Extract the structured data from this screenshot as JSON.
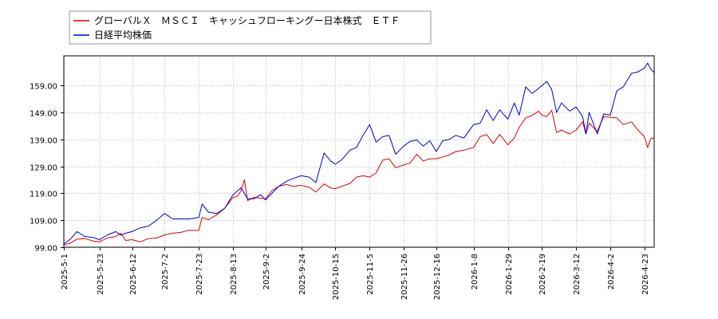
{
  "chart_data": {
    "type": "line",
    "title": "",
    "xlabel": "",
    "ylabel": "",
    "x_tick_labels": [
      "2025-5-1",
      "2025-5-23",
      "2025-6-12",
      "2025-7-2",
      "2025-7-23",
      "2025-8-13",
      "2025-9-2",
      "2025-9-24",
      "2025-10-15",
      "2025-11-5",
      "2025-11-26",
      "2025-12-16",
      "2026-1-8",
      "2026-1-29",
      "2026-2-19",
      "2026-3-12",
      "2026-4-2",
      "2026-4-23"
    ],
    "y_tick_labels": [
      "99.00",
      "109.00",
      "119.00",
      "129.00",
      "139.00",
      "149.00",
      "159.00"
    ],
    "ylim": [
      99,
      170
    ],
    "grid": true,
    "legend_position": "top-left",
    "series": [
      {
        "name": "グローバルＸ　ＭＳＣＩ　キャッシュフローキングー日本株式　ＥＴＦ",
        "color": "#dd0000",
        "points": [
          [
            "2025-5-1",
            99.9
          ],
          [
            "2025-5-5",
            100.5
          ],
          [
            "2025-5-9",
            102.0
          ],
          [
            "2025-5-14",
            102.2
          ],
          [
            "2025-5-19",
            101.3
          ],
          [
            "2025-5-23",
            101.0
          ],
          [
            "2025-5-28",
            102.5
          ],
          [
            "2025-6-2",
            103.0
          ],
          [
            "2025-6-5",
            104.2
          ],
          [
            "2025-6-8",
            101.5
          ],
          [
            "2025-6-12",
            101.8
          ],
          [
            "2025-6-17",
            101.0
          ],
          [
            "2025-6-22",
            102.2
          ],
          [
            "2025-6-27",
            102.4
          ],
          [
            "2025-7-2",
            103.6
          ],
          [
            "2025-7-7",
            104.2
          ],
          [
            "2025-7-12",
            104.5
          ],
          [
            "2025-7-17",
            105.3
          ],
          [
            "2025-7-23",
            105.2
          ],
          [
            "2025-7-25",
            110.0
          ],
          [
            "2025-7-29",
            109.2
          ],
          [
            "2025-8-3",
            111.0
          ],
          [
            "2025-8-8",
            113.5
          ],
          [
            "2025-8-13",
            117.5
          ],
          [
            "2025-8-16",
            118.0
          ],
          [
            "2025-8-18",
            120.0
          ],
          [
            "2025-8-20",
            124.0
          ],
          [
            "2025-8-22",
            116.3
          ],
          [
            "2025-8-26",
            117.5
          ],
          [
            "2025-8-30",
            117.2
          ],
          [
            "2025-9-2",
            117.0
          ],
          [
            "2025-9-6",
            120.0
          ],
          [
            "2025-9-10",
            121.5
          ],
          [
            "2025-9-15",
            122.3
          ],
          [
            "2025-9-19",
            121.5
          ],
          [
            "2025-9-24",
            122.0
          ],
          [
            "2025-9-29",
            121.2
          ],
          [
            "2025-10-3",
            119.5
          ],
          [
            "2025-10-8",
            122.5
          ],
          [
            "2025-10-12",
            121.0
          ],
          [
            "2025-10-15",
            120.7
          ],
          [
            "2025-10-19",
            121.6
          ],
          [
            "2025-10-24",
            122.7
          ],
          [
            "2025-10-28",
            125.0
          ],
          [
            "2025-11-1",
            125.5
          ],
          [
            "2025-11-5",
            125.0
          ],
          [
            "2025-11-9",
            126.5
          ],
          [
            "2025-11-13",
            131.3
          ],
          [
            "2025-11-17",
            131.8
          ],
          [
            "2025-11-21",
            128.5
          ],
          [
            "2025-11-26",
            129.5
          ],
          [
            "2025-11-30",
            130.3
          ],
          [
            "2025-12-4",
            133.5
          ],
          [
            "2025-12-8",
            131.0
          ],
          [
            "2025-12-12",
            131.8
          ],
          [
            "2025-12-16",
            131.8
          ],
          [
            "2025-12-20",
            132.5
          ],
          [
            "2025-12-24",
            133.2
          ],
          [
            "2025-12-28",
            134.5
          ],
          [
            "2026-1-2",
            135.0
          ],
          [
            "2026-1-8",
            136.0
          ],
          [
            "2026-1-12",
            140.0
          ],
          [
            "2026-1-16",
            140.8
          ],
          [
            "2026-1-20",
            137.5
          ],
          [
            "2026-1-24",
            140.8
          ],
          [
            "2026-1-29",
            137.0
          ],
          [
            "2026-2-2",
            139.5
          ],
          [
            "2026-2-5",
            143.5
          ],
          [
            "2026-2-9",
            147.0
          ],
          [
            "2026-2-13",
            147.9
          ],
          [
            "2026-2-17",
            149.5
          ],
          [
            "2026-2-19",
            148.0
          ],
          [
            "2026-2-22",
            147.5
          ],
          [
            "2026-2-25",
            149.8
          ],
          [
            "2026-2-28",
            141.5
          ],
          [
            "2026-3-3",
            142.5
          ],
          [
            "2026-3-8",
            141.0
          ],
          [
            "2026-3-12",
            142.5
          ],
          [
            "2026-3-16",
            145.5
          ],
          [
            "2026-3-18",
            141.0
          ],
          [
            "2026-3-20",
            145.0
          ],
          [
            "2026-3-25",
            142.0
          ],
          [
            "2026-3-29",
            147.5
          ],
          [
            "2026-4-2",
            147.2
          ],
          [
            "2026-4-6",
            147.0
          ],
          [
            "2026-4-10",
            144.5
          ],
          [
            "2026-4-15",
            145.5
          ],
          [
            "2026-4-19",
            142.5
          ],
          [
            "2026-4-23",
            140.0
          ],
          [
            "2026-4-25",
            136.0
          ],
          [
            "2026-4-27",
            139.3
          ],
          [
            "2026-4-29",
            139.5
          ]
        ]
      },
      {
        "name": "日経平均株価",
        "color": "#0000cc",
        "points": [
          [
            "2025-5-1",
            100.2
          ],
          [
            "2025-5-5",
            102.0
          ],
          [
            "2025-5-9",
            104.8
          ],
          [
            "2025-5-14",
            103.0
          ],
          [
            "2025-5-19",
            102.6
          ],
          [
            "2025-5-23",
            101.8
          ],
          [
            "2025-5-28",
            103.6
          ],
          [
            "2025-6-2",
            104.8
          ],
          [
            "2025-6-5",
            103.5
          ],
          [
            "2025-6-8",
            104.2
          ],
          [
            "2025-6-12",
            104.8
          ],
          [
            "2025-6-17",
            106.2
          ],
          [
            "2025-6-22",
            106.8
          ],
          [
            "2025-6-27",
            109.0
          ],
          [
            "2025-7-2",
            111.5
          ],
          [
            "2025-7-7",
            109.5
          ],
          [
            "2025-7-12",
            109.5
          ],
          [
            "2025-7-17",
            109.5
          ],
          [
            "2025-7-23",
            110.0
          ],
          [
            "2025-7-25",
            115.0
          ],
          [
            "2025-7-29",
            112.0
          ],
          [
            "2025-8-3",
            111.5
          ],
          [
            "2025-8-8",
            113.5
          ],
          [
            "2025-8-13",
            118.5
          ],
          [
            "2025-8-16",
            120.0
          ],
          [
            "2025-8-18",
            121.0
          ],
          [
            "2025-8-20",
            119.0
          ],
          [
            "2025-8-22",
            117.0
          ],
          [
            "2025-8-26",
            117.0
          ],
          [
            "2025-8-30",
            118.5
          ],
          [
            "2025-9-2",
            116.5
          ],
          [
            "2025-9-6",
            119.0
          ],
          [
            "2025-9-10",
            121.5
          ],
          [
            "2025-9-15",
            123.5
          ],
          [
            "2025-9-19",
            124.5
          ],
          [
            "2025-9-24",
            125.5
          ],
          [
            "2025-9-29",
            125.0
          ],
          [
            "2025-10-3",
            123.0
          ],
          [
            "2025-10-8",
            134.0
          ],
          [
            "2025-10-12",
            131.0
          ],
          [
            "2025-10-15",
            129.8
          ],
          [
            "2025-10-19",
            131.5
          ],
          [
            "2025-10-24",
            135.0
          ],
          [
            "2025-10-28",
            136.0
          ],
          [
            "2025-11-1",
            140.5
          ],
          [
            "2025-11-5",
            144.5
          ],
          [
            "2025-11-9",
            138.0
          ],
          [
            "2025-11-13",
            140.0
          ],
          [
            "2025-11-17",
            140.5
          ],
          [
            "2025-11-21",
            133.5
          ],
          [
            "2025-11-26",
            136.5
          ],
          [
            "2025-11-30",
            138.3
          ],
          [
            "2025-12-4",
            138.8
          ],
          [
            "2025-12-8",
            136.5
          ],
          [
            "2025-12-12",
            138.5
          ],
          [
            "2025-12-16",
            134.5
          ],
          [
            "2025-12-20",
            138.5
          ],
          [
            "2025-12-24",
            139.0
          ],
          [
            "2025-12-28",
            140.5
          ],
          [
            "2026-1-2",
            139.5
          ],
          [
            "2026-1-8",
            144.5
          ],
          [
            "2026-1-12",
            145.0
          ],
          [
            "2026-1-16",
            150.0
          ],
          [
            "2026-1-20",
            146.0
          ],
          [
            "2026-1-24",
            150.0
          ],
          [
            "2026-1-29",
            146.5
          ],
          [
            "2026-2-2",
            152.5
          ],
          [
            "2026-2-5",
            148.0
          ],
          [
            "2026-2-9",
            158.5
          ],
          [
            "2026-2-13",
            156.0
          ],
          [
            "2026-2-17",
            158.0
          ],
          [
            "2026-2-19",
            159.0
          ],
          [
            "2026-2-22",
            160.5
          ],
          [
            "2026-2-25",
            157.5
          ],
          [
            "2026-2-28",
            149.0
          ],
          [
            "2026-3-3",
            152.5
          ],
          [
            "2026-3-8",
            149.5
          ],
          [
            "2026-3-12",
            151.0
          ],
          [
            "2026-3-16",
            147.5
          ],
          [
            "2026-3-18",
            141.0
          ],
          [
            "2026-3-20",
            149.0
          ],
          [
            "2026-3-25",
            141.0
          ],
          [
            "2026-3-29",
            148.5
          ],
          [
            "2026-4-2",
            148.0
          ],
          [
            "2026-4-6",
            157.0
          ],
          [
            "2026-4-10",
            158.5
          ],
          [
            "2026-4-15",
            163.5
          ],
          [
            "2026-4-19",
            164.0
          ],
          [
            "2026-4-23",
            165.5
          ],
          [
            "2026-4-25",
            167.3
          ],
          [
            "2026-4-27",
            165.0
          ],
          [
            "2026-4-29",
            163.8
          ]
        ]
      }
    ]
  }
}
